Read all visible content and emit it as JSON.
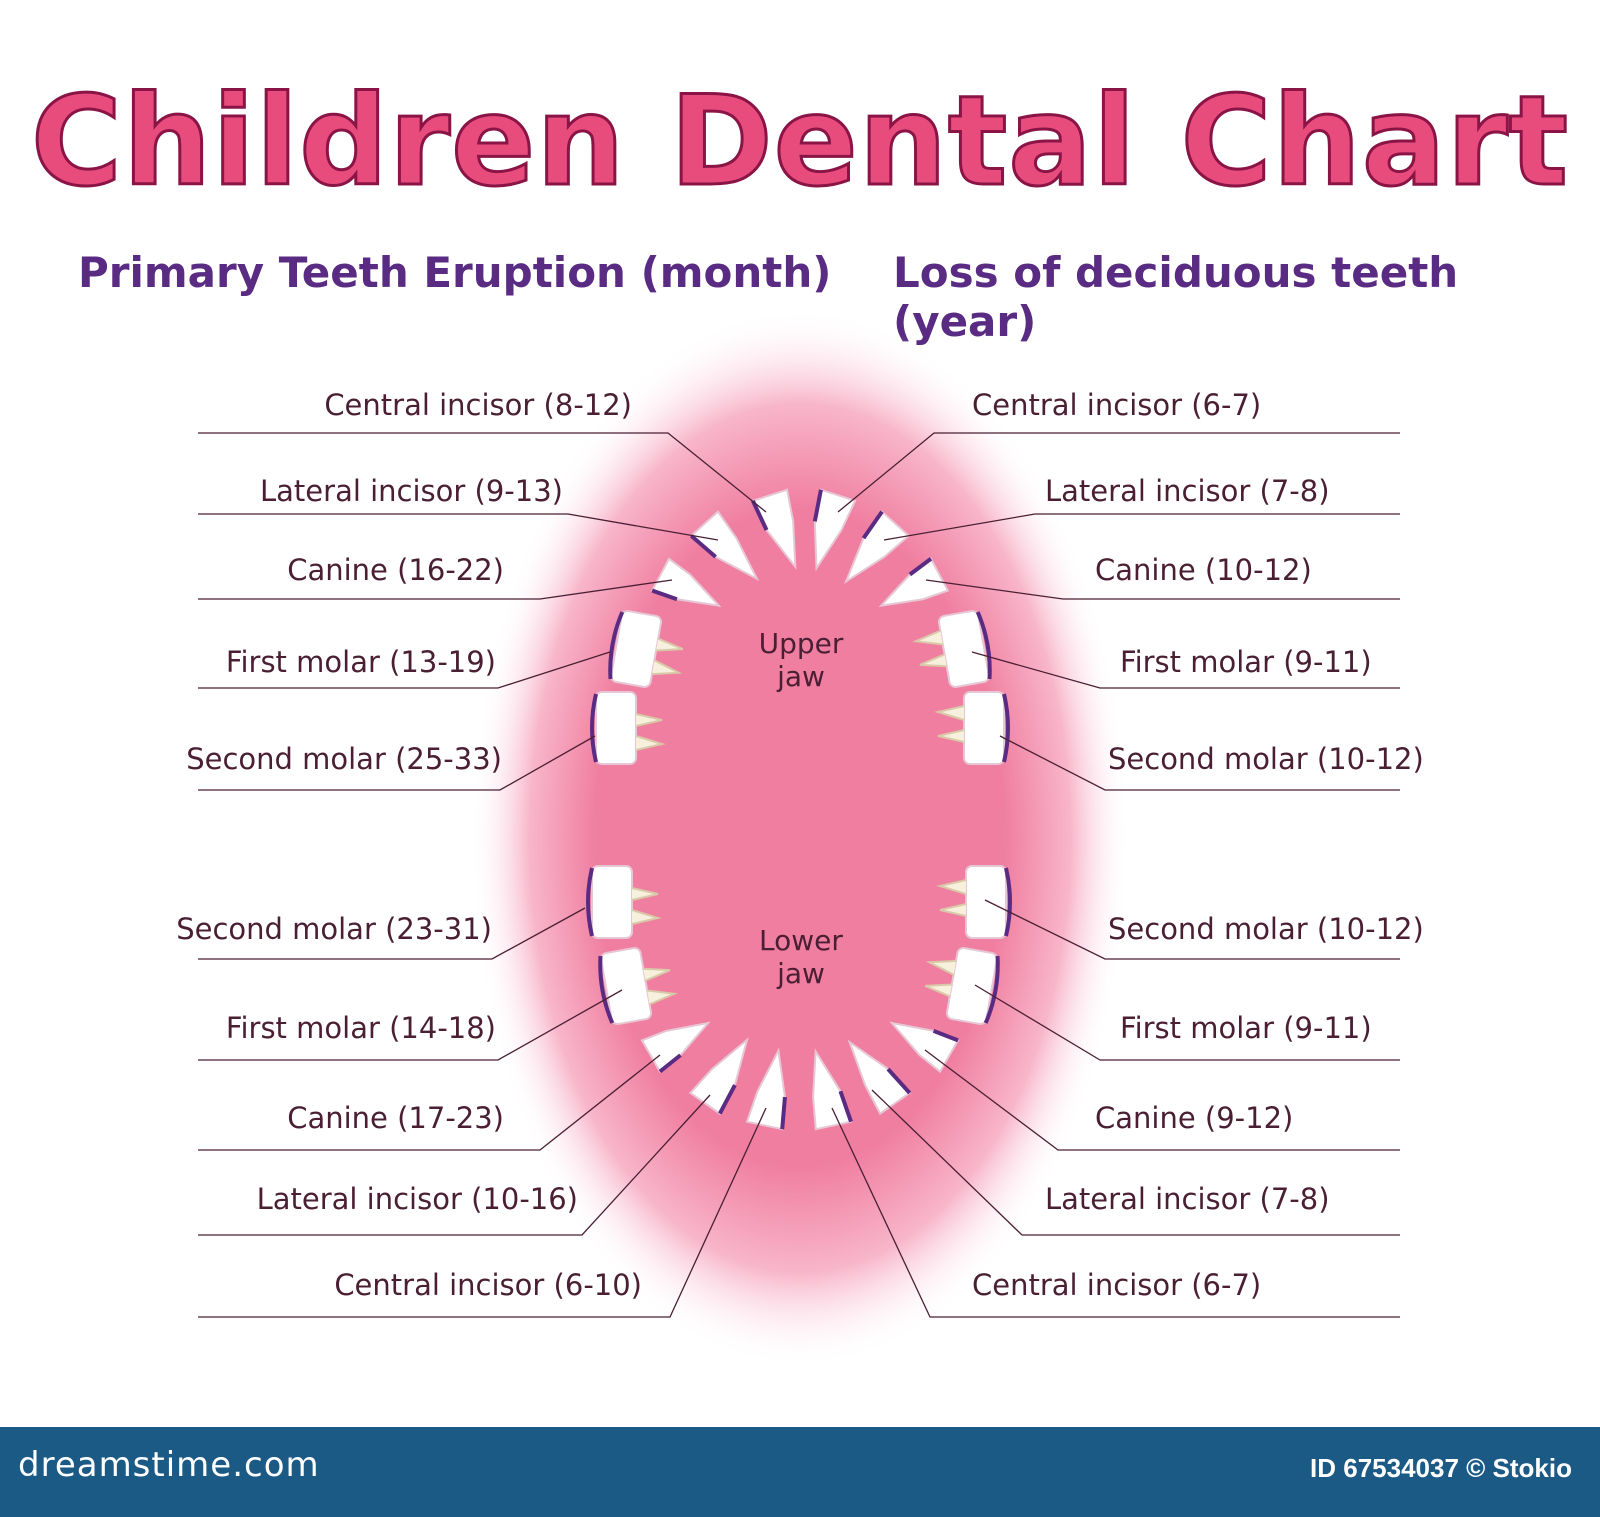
{
  "title": "Children Dental Chart",
  "subtitles": {
    "eruption": "Primary Teeth Eruption (month)",
    "loss": "Loss of deciduous teeth (year)"
  },
  "jaw_labels": {
    "upper": [
      "Upper",
      "jaw"
    ],
    "lower": [
      "Lower",
      "jaw"
    ]
  },
  "eruption_labels": {
    "upper": [
      "Central incisor (8-12)",
      "Lateral incisor (9-13)",
      "Canine (16-22)",
      "First molar (13-19)",
      "Second molar (25-33)"
    ],
    "lower": [
      "Second molar (23-31)",
      "First molar (14-18)",
      "Canine (17-23)",
      "Lateral incisor (10-16)",
      "Central incisor (6-10)"
    ]
  },
  "loss_labels": {
    "upper": [
      "Central incisor (6-7)",
      "Lateral incisor (7-8)",
      "Canine (10-12)",
      "First molar (9-11)",
      "Second molar (10-12)"
    ],
    "lower": [
      "Second molar (10-12)",
      "First molar (9-11)",
      "Canine (9-12)",
      "Lateral incisor (7-8)",
      "Central incisor (6-7)"
    ]
  },
  "footer": {
    "brand": "dreamstime.com",
    "id_text": "ID 67534037 © Stokio"
  },
  "colors": {
    "title": "#e84c7d",
    "subtitle": "#5a2b82",
    "gum": "#f07ea0",
    "leader_line": "#4a1f33",
    "tooth": "#ffffff",
    "tooth_edge": "#5a2b82",
    "footer_bg": "#1c5a86"
  }
}
